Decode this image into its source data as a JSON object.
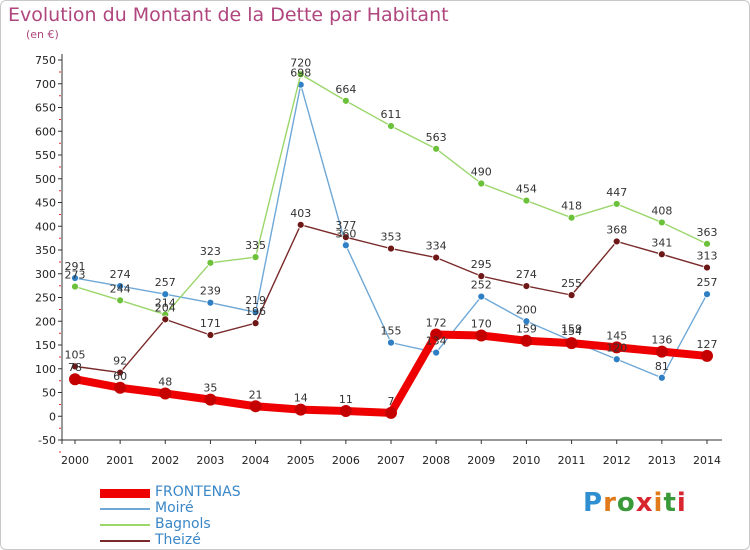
{
  "title": "Evolution du Montant de la Dette par Habitant",
  "unit": "(en €)",
  "logo": {
    "text": "Proxiti",
    "letters": [
      "P",
      "r",
      "o",
      "x",
      "i",
      "t",
      "i"
    ],
    "colors": [
      "#2f8fd0",
      "#e07a1a",
      "#3a9a3a",
      "#d8262f",
      "#e07a1a",
      "#3a9a3a",
      "#d8262f"
    ]
  },
  "chart_data": {
    "type": "line",
    "title": "Evolution du Montant de la Dette par Habitant",
    "ylabel": "(en €)",
    "xlabel": "",
    "x": [
      "2000",
      "2001",
      "2002",
      "2003",
      "2004",
      "2005",
      "2006",
      "2007",
      "2008",
      "2009",
      "2010",
      "2011",
      "2012",
      "2013",
      "2014"
    ],
    "ylim": [
      -50,
      750
    ],
    "yticks": [
      "-50",
      "0",
      "50",
      "100",
      "150",
      "200",
      "250",
      "300",
      "350",
      "400",
      "450",
      "500",
      "550",
      "600",
      "650",
      "700",
      "750"
    ],
    "grid": false,
    "legend_position": "bottom-left",
    "series": [
      {
        "name": "FRONTENAS",
        "color": "#ee0000",
        "marker": "#c40000",
        "emphasis": true,
        "values": [
          78,
          60,
          48,
          35,
          21,
          14,
          11,
          7,
          172,
          170,
          159,
          154,
          145,
          136,
          127
        ],
        "labels": [
          "78",
          "60",
          "48",
          "35",
          "21",
          "14",
          "11",
          "7",
          "172",
          "170",
          "159",
          "154",
          "145",
          "136",
          "127"
        ]
      },
      {
        "name": "Moiré",
        "color": "#6fa8d6",
        "marker": "#2e7fc3",
        "values": [
          291,
          274,
          257,
          239,
          219,
          698,
          360,
          155,
          134,
          252,
          200,
          159,
          120,
          81,
          257
        ],
        "labels": [
          "291",
          "274",
          "257",
          "239",
          "219",
          "698",
          "360",
          "155",
          "134",
          "252",
          "200",
          "159",
          "120",
          "81",
          "257"
        ]
      },
      {
        "name": "Bagnols",
        "color": "#9ad66a",
        "marker": "#6cc13a",
        "values": [
          273,
          244,
          214,
          323,
          335,
          720,
          664,
          611,
          563,
          490,
          454,
          418,
          447,
          408,
          363
        ],
        "labels": [
          "273",
          "244",
          "214",
          "323",
          "335",
          "720",
          "664",
          "611",
          "563",
          "490",
          "454",
          "418",
          "447",
          "408",
          "363"
        ]
      },
      {
        "name": "Theizé",
        "color": "#7a2a2a",
        "marker": "#6e1717",
        "values": [
          105,
          92,
          204,
          171,
          196,
          403,
          377,
          353,
          334,
          295,
          274,
          255,
          368,
          341,
          313
        ],
        "labels": [
          "105",
          "92",
          "204",
          "171",
          "196",
          "403",
          "377",
          "353",
          "334",
          "295",
          "274",
          "255",
          "368",
          "341",
          "313"
        ]
      }
    ]
  }
}
